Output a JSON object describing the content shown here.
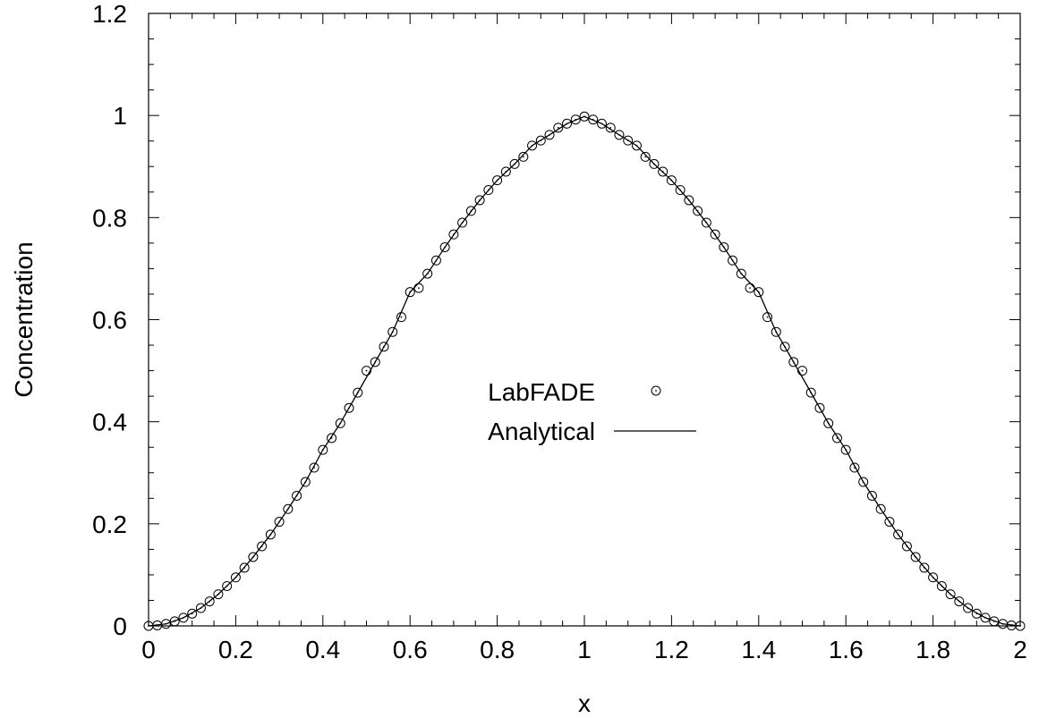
{
  "chart_data": {
    "type": "line",
    "xlabel": "x",
    "ylabel": "Concentration",
    "xlim": [
      0,
      2
    ],
    "ylim": [
      0,
      1.2
    ],
    "xticks": [
      0,
      0.2,
      0.4,
      0.6,
      0.8,
      1,
      1.2,
      1.4,
      1.6,
      1.8,
      2
    ],
    "yticks": [
      0,
      0.2,
      0.4,
      0.6,
      0.8,
      1,
      1.2
    ],
    "x_tick_labels": [
      "0",
      "0.2",
      "0.4",
      "0.6",
      "0.8",
      "1",
      "1.2",
      "1.4",
      "1.6",
      "1.8",
      "2"
    ],
    "y_tick_labels": [
      "0",
      "0.2",
      "0.4",
      "0.6",
      "0.8",
      "1",
      "1.2"
    ],
    "grid": false,
    "legend_position": "center",
    "series": [
      {
        "name": "LabFADE",
        "style": "markers",
        "marker": "circle-dot",
        "color": "#000000",
        "x": [
          0,
          0.02,
          0.04,
          0.06,
          0.08,
          0.1,
          0.12,
          0.14,
          0.16,
          0.18,
          0.2,
          0.22,
          0.24,
          0.26,
          0.28,
          0.3,
          0.32,
          0.34,
          0.36,
          0.38,
          0.4,
          0.42,
          0.44,
          0.46,
          0.48,
          0.5,
          0.52,
          0.54,
          0.56,
          0.58,
          0.6,
          0.62,
          0.64,
          0.66,
          0.68,
          0.7,
          0.72,
          0.74,
          0.76,
          0.78,
          0.8,
          0.82,
          0.84,
          0.86,
          0.88,
          0.9,
          0.92,
          0.94,
          0.96,
          0.98,
          1,
          1.02,
          1.04,
          1.06,
          1.08,
          1.1,
          1.12,
          1.14,
          1.16,
          1.18,
          1.2,
          1.22,
          1.24,
          1.26,
          1.28,
          1.3,
          1.32,
          1.34,
          1.36,
          1.38,
          1.4,
          1.42,
          1.44,
          1.46,
          1.48,
          1.5,
          1.52,
          1.54,
          1.56,
          1.58,
          1.6,
          1.62,
          1.64,
          1.66,
          1.68,
          1.7,
          1.72,
          1.74,
          1.76,
          1.78,
          1.8,
          1.82,
          1.84,
          1.86,
          1.88,
          1.9,
          1.92,
          1.94,
          1.96,
          1.98,
          2
        ],
        "y": [
          0,
          0.001,
          0.004,
          0.009,
          0.016,
          0.024,
          0.035,
          0.048,
          0.062,
          0.078,
          0.095,
          0.114,
          0.135,
          0.156,
          0.179,
          0.204,
          0.229,
          0.255,
          0.282,
          0.31,
          0.345,
          0.368,
          0.397,
          0.427,
          0.457,
          0.5,
          0.517,
          0.547,
          0.576,
          0.605,
          0.654,
          0.662,
          0.69,
          0.716,
          0.742,
          0.767,
          0.79,
          0.813,
          0.834,
          0.854,
          0.873,
          0.89,
          0.905,
          0.919,
          0.941,
          0.951,
          0.962,
          0.976,
          0.984,
          0.992,
          0.998,
          0.992,
          0.984,
          0.976,
          0.962,
          0.951,
          0.941,
          0.919,
          0.905,
          0.89,
          0.873,
          0.854,
          0.834,
          0.813,
          0.79,
          0.767,
          0.742,
          0.716,
          0.69,
          0.662,
          0.654,
          0.605,
          0.576,
          0.547,
          0.517,
          0.5,
          0.457,
          0.427,
          0.397,
          0.368,
          0.345,
          0.31,
          0.282,
          0.255,
          0.229,
          0.204,
          0.179,
          0.156,
          0.135,
          0.114,
          0.095,
          0.078,
          0.062,
          0.048,
          0.035,
          0.024,
          0.016,
          0.009,
          0.004,
          0.001,
          0
        ]
      },
      {
        "name": "Analytical",
        "style": "line",
        "color": "#000000",
        "x": [
          0,
          0.04,
          0.08,
          0.12,
          0.16,
          0.2,
          0.24,
          0.28,
          0.32,
          0.36,
          0.4,
          0.44,
          0.48,
          0.52,
          0.56,
          0.6,
          0.64,
          0.68,
          0.72,
          0.76,
          0.8,
          0.84,
          0.88,
          0.92,
          0.96,
          1,
          1.04,
          1.08,
          1.12,
          1.16,
          1.2,
          1.24,
          1.28,
          1.32,
          1.36,
          1.4,
          1.44,
          1.48,
          1.52,
          1.56,
          1.6,
          1.64,
          1.68,
          1.72,
          1.76,
          1.8,
          1.84,
          1.88,
          1.92,
          1.96,
          2
        ],
        "y": [
          0,
          0.004,
          0.016,
          0.035,
          0.062,
          0.095,
          0.135,
          0.179,
          0.229,
          0.282,
          0.345,
          0.397,
          0.457,
          0.517,
          0.576,
          0.654,
          0.69,
          0.742,
          0.79,
          0.834,
          0.873,
          0.905,
          0.941,
          0.962,
          0.984,
          0.998,
          0.984,
          0.962,
          0.941,
          0.905,
          0.873,
          0.834,
          0.79,
          0.742,
          0.69,
          0.654,
          0.576,
          0.517,
          0.457,
          0.397,
          0.345,
          0.282,
          0.229,
          0.179,
          0.135,
          0.095,
          0.062,
          0.035,
          0.016,
          0.004,
          0
        ]
      }
    ]
  }
}
